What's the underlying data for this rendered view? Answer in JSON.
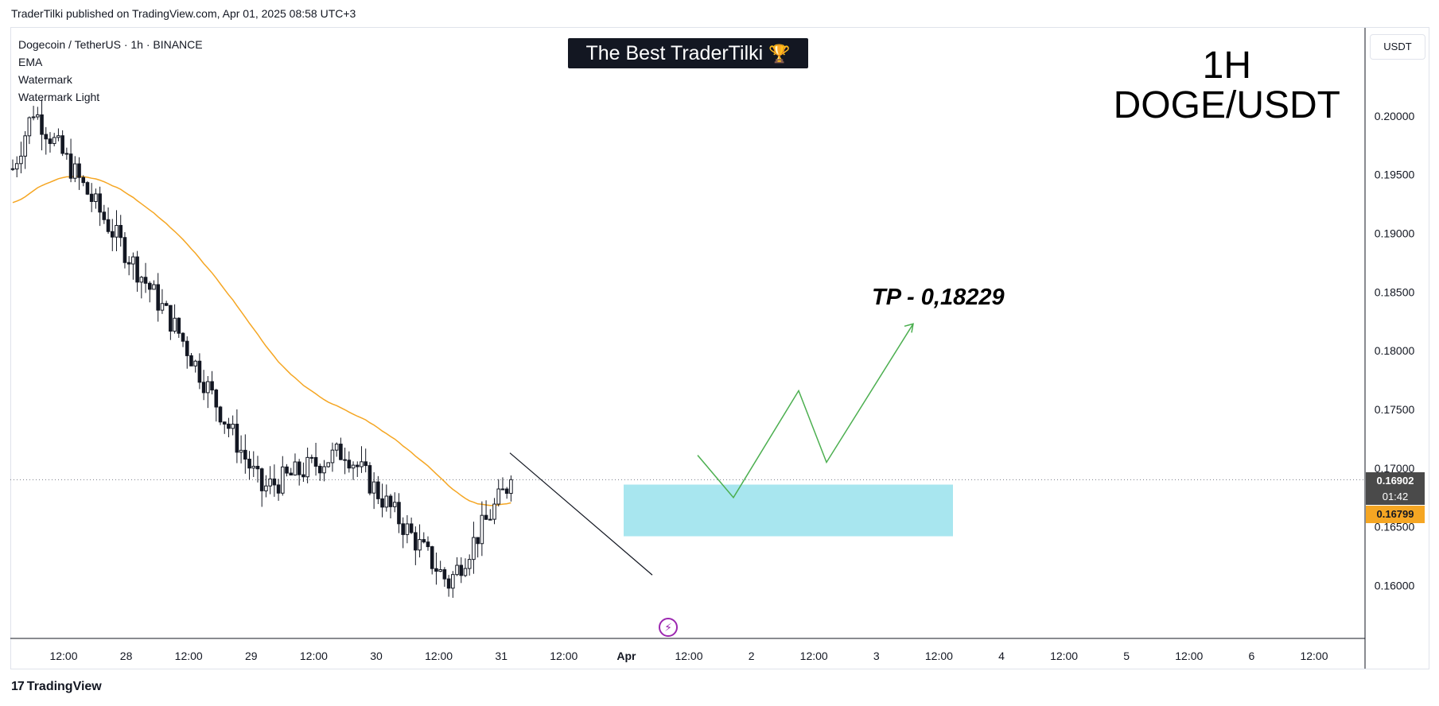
{
  "header": {
    "published": "TraderTilki published on TradingView.com, Apr 01, 2025 08:58 UTC+3"
  },
  "legend": {
    "symbol": "Dogecoin / TetherUS · 1h · BINANCE",
    "indicators": [
      "EMA",
      "Watermark",
      "Watermark Light"
    ]
  },
  "banner": {
    "text": "The Best TraderTilki",
    "icon": "trophy-icon"
  },
  "watermark": {
    "timeframe": "1H",
    "pair": "DOGE/USDT"
  },
  "currency_button": "USDT",
  "annotation": {
    "tp_text": "TP - 0,18229"
  },
  "price_tags": {
    "current": "0.16902",
    "timer": "01:42",
    "ema": "0.16799"
  },
  "footer": {
    "brand": "TradingView",
    "logo_mark": "17"
  },
  "colors": {
    "candle": "#131722",
    "ema": "#f5a623",
    "zone": "#a8e6ef",
    "projection": "#4caf50",
    "trendline": "#131722",
    "event": "#9c27b0"
  },
  "chart_data": {
    "type": "candlestick",
    "title": "",
    "ylim": [
      0.1555,
      0.2075
    ],
    "y_ticks": [
      "0.20000",
      "0.19500",
      "0.19000",
      "0.18500",
      "0.18000",
      "0.17500",
      "0.17000",
      "0.16500",
      "0.16000"
    ],
    "x_ticks": [
      "12:00",
      "28",
      "12:00",
      "29",
      "12:00",
      "30",
      "12:00",
      "31",
      "12:00",
      "Apr",
      "12:00",
      "2",
      "12:00",
      "3",
      "12:00",
      "4",
      "12:00",
      "5",
      "12:00",
      "6",
      "12:00"
    ],
    "grid": false,
    "current_price": 0.16902,
    "ema_value": 0.16799,
    "key_anchors": [
      {
        "label": "start",
        "price": 0.1955
      },
      {
        "label": "high",
        "price": 0.2005
      },
      {
        "label": "decline",
        "price": 0.1815
      },
      {
        "label": "bounce-low",
        "price": 0.1682
      },
      {
        "label": "consolidation",
        "price": 0.1715
      },
      {
        "label": "low",
        "price": 0.1602
      },
      {
        "label": "last",
        "price": 0.169
      }
    ],
    "demand_zone": {
      "top": 0.1686,
      "bottom": 0.1642
    },
    "projection_prices": [
      0.1711,
      0.1675,
      0.1766,
      0.1705,
      0.18229
    ],
    "tp": 0.18229
  }
}
